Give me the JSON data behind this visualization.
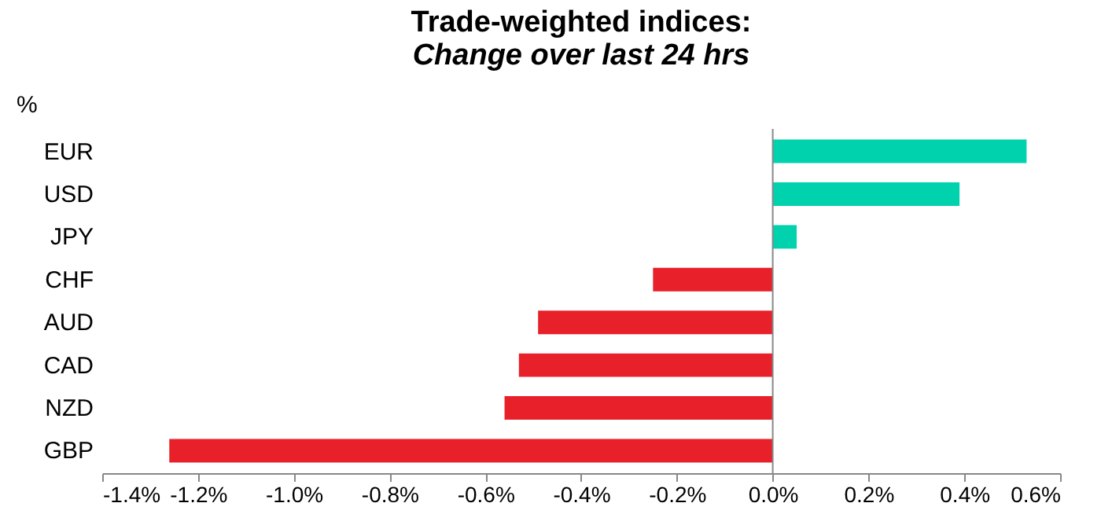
{
  "chart_data": {
    "type": "bar",
    "orientation": "horizontal",
    "title": "Trade-weighted indices:",
    "subtitle": "Change over last 24 hrs",
    "ylabel": "%",
    "categories": [
      "EUR",
      "USD",
      "JPY",
      "CHF",
      "AUD",
      "CAD",
      "NZD",
      "GBP"
    ],
    "values": [
      0.53,
      0.39,
      0.05,
      -0.25,
      -0.49,
      -0.53,
      -0.56,
      -1.26
    ],
    "colors": [
      "#00d2ae",
      "#00d2ae",
      "#00d2ae",
      "#e8202a",
      "#e8202a",
      "#e8202a",
      "#e8202a",
      "#e8202a"
    ],
    "xlim": [
      -1.4,
      0.6
    ],
    "xticks": [
      {
        "value": -1.4,
        "label": "-1.4%"
      },
      {
        "value": -1.2,
        "label": "-1.2%"
      },
      {
        "value": -1.0,
        "label": "-1.0%"
      },
      {
        "value": -0.8,
        "label": "-0.8%"
      },
      {
        "value": -0.6,
        "label": "-0.6%"
      },
      {
        "value": -0.4,
        "label": "-0.4%"
      },
      {
        "value": -0.2,
        "label": "-0.2%"
      },
      {
        "value": 0,
        "label": "0.0%"
      },
      {
        "value": 0.2,
        "label": "0.2%"
      },
      {
        "value": 0.4,
        "label": "0.4%"
      },
      {
        "value": 0.6,
        "label": "0.6%"
      }
    ],
    "ref_lines": [
      {
        "axis": "x",
        "value": 0,
        "color": "#888888"
      }
    ],
    "grid": false,
    "legend": false
  }
}
